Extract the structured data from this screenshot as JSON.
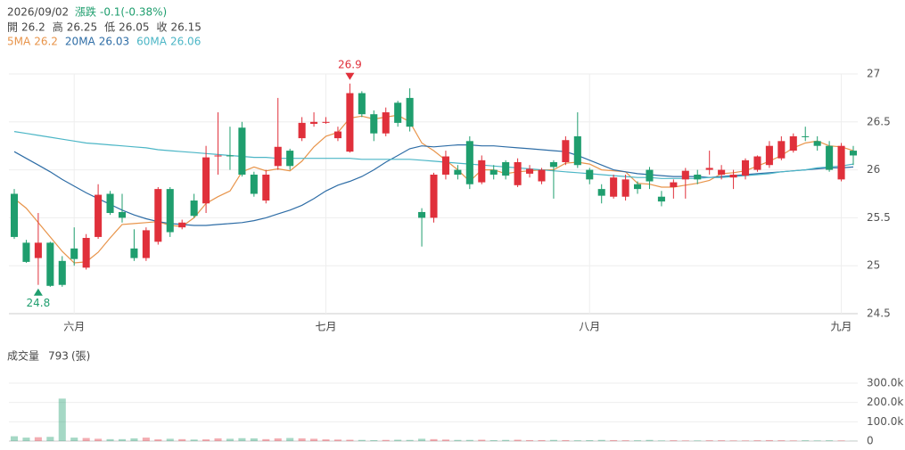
{
  "chart_data": {
    "type": "candlestick",
    "date": "2026/09/02",
    "change_title": "漲跌",
    "change_label": "-0.1(-0.38%)",
    "quote": [
      {
        "label": "開",
        "value": 26.2
      },
      {
        "label": "高",
        "value": 26.25
      },
      {
        "label": "低",
        "value": 26.05
      },
      {
        "label": "收",
        "value": 26.15
      }
    ],
    "up_color": "#e0303b",
    "down_color": "#1f9e6e",
    "open": [
      25.75,
      25.24,
      25.08,
      25.24,
      25.05,
      25.18,
      24.98,
      25.3,
      25.75,
      25.56,
      25.18,
      25.08,
      25.25,
      25.8,
      25.4,
      25.68,
      25.65,
      26.14,
      26.15,
      26.44,
      25.95,
      25.68,
      26.04,
      26.2,
      26.33,
      26.48,
      26.49,
      26.33,
      26.19,
      26.8,
      26.58,
      26.38,
      26.7,
      26.75,
      25.56,
      25.5,
      25.95,
      26.0,
      26.3,
      25.87,
      26.0,
      26.08,
      25.84,
      25.96,
      25.88,
      26.08,
      26.08,
      26.35,
      26.0,
      25.8,
      25.72,
      25.72,
      25.85,
      26.0,
      25.72,
      25.82,
      25.9,
      25.95,
      26.0,
      25.95,
      25.92,
      25.94,
      26.0,
      26.05,
      26.12,
      26.2,
      26.35,
      26.3,
      26.25,
      25.9,
      26.2
    ],
    "high": [
      25.8,
      25.27,
      25.55,
      25.25,
      25.1,
      25.4,
      25.33,
      25.85,
      25.78,
      25.75,
      25.38,
      25.4,
      25.82,
      25.82,
      25.48,
      25.75,
      26.25,
      26.6,
      26.45,
      26.5,
      25.98,
      26.0,
      26.75,
      26.22,
      26.55,
      26.6,
      26.55,
      26.45,
      26.9,
      26.82,
      26.62,
      26.65,
      26.72,
      26.85,
      25.6,
      25.97,
      26.2,
      26.05,
      26.35,
      26.15,
      26.05,
      26.1,
      26.12,
      26.05,
      26.02,
      26.1,
      26.35,
      26.6,
      26.02,
      25.85,
      25.95,
      25.95,
      25.88,
      26.03,
      25.78,
      25.9,
      26.02,
      26.0,
      26.2,
      26.05,
      26.0,
      26.12,
      26.15,
      26.3,
      26.35,
      26.38,
      26.45,
      26.35,
      26.3,
      26.28,
      26.25
    ],
    "low": [
      25.28,
      25.03,
      24.8,
      24.78,
      24.78,
      25.0,
      24.96,
      25.28,
      25.53,
      25.45,
      25.05,
      25.05,
      25.22,
      25.3,
      25.38,
      25.5,
      25.55,
      25.95,
      26.0,
      25.93,
      25.72,
      25.65,
      26.0,
      26.0,
      26.3,
      26.45,
      26.48,
      26.3,
      26.18,
      26.55,
      26.3,
      26.35,
      26.45,
      26.4,
      25.2,
      25.45,
      25.9,
      25.9,
      25.8,
      25.85,
      25.9,
      25.9,
      25.82,
      25.92,
      25.85,
      25.7,
      26.05,
      26.02,
      25.85,
      25.65,
      25.7,
      25.68,
      25.75,
      25.8,
      25.62,
      25.7,
      25.7,
      25.85,
      25.95,
      25.9,
      25.8,
      25.9,
      25.98,
      26.02,
      26.1,
      26.18,
      26.3,
      26.2,
      25.98,
      25.88,
      26.05
    ],
    "close": [
      25.3,
      25.04,
      25.24,
      24.79,
      24.8,
      25.07,
      25.29,
      25.74,
      25.55,
      25.5,
      25.08,
      25.37,
      25.8,
      25.35,
      25.45,
      25.52,
      26.13,
      26.15,
      26.15,
      25.95,
      25.75,
      25.95,
      26.24,
      26.04,
      26.49,
      26.5,
      26.5,
      26.4,
      26.8,
      26.58,
      26.38,
      26.6,
      26.49,
      26.45,
      25.5,
      25.95,
      26.14,
      25.95,
      25.85,
      26.1,
      25.95,
      25.94,
      26.08,
      26.01,
      26.0,
      26.03,
      26.31,
      26.05,
      25.9,
      25.73,
      25.92,
      25.9,
      25.8,
      25.88,
      25.67,
      25.87,
      25.99,
      25.9,
      26.02,
      26.0,
      25.95,
      26.1,
      26.14,
      26.25,
      26.3,
      26.35,
      26.35,
      26.25,
      26.0,
      26.25,
      26.15
    ],
    "series": [
      {
        "name": "5MA",
        "color": "#e8944a",
        "last": 26.2,
        "values": [
          25.7,
          25.6,
          25.45,
          25.3,
          25.15,
          25.03,
          25.04,
          25.14,
          25.29,
          25.43,
          25.44,
          25.45,
          25.46,
          25.42,
          25.41,
          25.5,
          25.65,
          25.72,
          25.78,
          25.98,
          26.03,
          25.99,
          26.01,
          25.99,
          26.09,
          26.24,
          26.35,
          26.39,
          26.54,
          26.56,
          26.53,
          26.55,
          26.57,
          26.5,
          26.28,
          26.2,
          26.1,
          26.0,
          25.88,
          26.0,
          26.0,
          25.96,
          25.98,
          25.99,
          26.0,
          26.0,
          26.07,
          26.08,
          26.06,
          26.0,
          25.99,
          25.98,
          25.86,
          25.85,
          25.82,
          25.82,
          25.84,
          25.86,
          25.89,
          25.96,
          25.97,
          25.99,
          26.04,
          26.09,
          26.15,
          26.23,
          26.28,
          26.3,
          26.25,
          26.24,
          26.2
        ]
      },
      {
        "name": "20MA",
        "color": "#2e6da6",
        "last": 26.03,
        "values": [
          26.19,
          26.12,
          26.05,
          25.98,
          25.9,
          25.83,
          25.76,
          25.7,
          25.64,
          25.58,
          25.53,
          25.49,
          25.46,
          25.44,
          25.43,
          25.42,
          25.42,
          25.43,
          25.44,
          25.45,
          25.47,
          25.5,
          25.54,
          25.58,
          25.63,
          25.7,
          25.78,
          25.84,
          25.88,
          25.93,
          26.0,
          26.08,
          26.15,
          26.22,
          26.25,
          26.24,
          26.25,
          26.26,
          26.26,
          26.25,
          26.25,
          26.24,
          26.23,
          26.22,
          26.21,
          26.2,
          26.19,
          26.15,
          26.1,
          26.05,
          26.0,
          25.98,
          25.96,
          25.95,
          25.94,
          25.93,
          25.93,
          25.93,
          25.92,
          25.93,
          25.94,
          25.95,
          25.96,
          25.97,
          25.98,
          25.99,
          26.0,
          26.01,
          26.02,
          26.02,
          26.03
        ]
      },
      {
        "name": "60MA",
        "color": "#4cb6c6",
        "last": 26.06,
        "values": [
          26.4,
          26.38,
          26.36,
          26.34,
          26.32,
          26.3,
          26.28,
          26.27,
          26.26,
          26.25,
          26.24,
          26.23,
          26.21,
          26.2,
          26.19,
          26.18,
          26.17,
          26.16,
          26.15,
          26.14,
          26.13,
          26.13,
          26.12,
          26.12,
          26.12,
          26.12,
          26.12,
          26.12,
          26.12,
          26.11,
          26.11,
          26.11,
          26.11,
          26.11,
          26.1,
          26.09,
          26.08,
          26.07,
          26.06,
          26.05,
          26.04,
          26.03,
          26.02,
          26.01,
          26.0,
          25.99,
          25.98,
          25.97,
          25.96,
          25.95,
          25.94,
          25.93,
          25.92,
          25.92,
          25.91,
          25.91,
          25.91,
          25.91,
          25.92,
          25.92,
          25.93,
          25.94,
          25.95,
          25.96,
          25.98,
          25.99,
          26.0,
          26.02,
          26.03,
          26.04,
          26.06
        ]
      }
    ],
    "high_mark": 26.9,
    "low_mark": 24.8,
    "ylim": [
      24.5,
      27
    ],
    "yticks": [
      24.5,
      25,
      25.5,
      26,
      26.5,
      27
    ],
    "month_ticks": [
      {
        "value": 5,
        "label": "六月"
      },
      {
        "value": 26,
        "label": "七月"
      },
      {
        "value": 48,
        "label": "八月"
      },
      {
        "value": 69,
        "label": "九月"
      }
    ],
    "volume_title": "成交量",
    "volume_last": 793,
    "volume_unit": "(張)",
    "volume": [
      25000,
      18000,
      20000,
      22000,
      220000,
      18000,
      16000,
      12000,
      10000,
      10000,
      14000,
      18000,
      9000,
      12000,
      10000,
      8000,
      9000,
      14000,
      12000,
      15000,
      14000,
      10000,
      14000,
      16000,
      14000,
      12000,
      9000,
      8000,
      7000,
      6000,
      5000,
      6000,
      7000,
      6000,
      12000,
      10000,
      8000,
      6000,
      6000,
      7000,
      5000,
      6000,
      7000,
      5000,
      5000,
      6000,
      5000,
      4000,
      5000,
      6000,
      5000,
      4000,
      4000,
      6000,
      3000,
      4000,
      3000,
      3000,
      4000,
      4000,
      3000,
      3000,
      4000,
      5000,
      4000,
      3000,
      4000,
      3000,
      4000,
      3000,
      793
    ],
    "vlim": [
      0,
      300000
    ],
    "vticks": [
      0,
      {
        "value": 100000,
        "label": "100.0k"
      },
      {
        "value": 200000,
        "label": "200.0k"
      },
      {
        "value": 300000,
        "label": "300.0k"
      }
    ]
  }
}
